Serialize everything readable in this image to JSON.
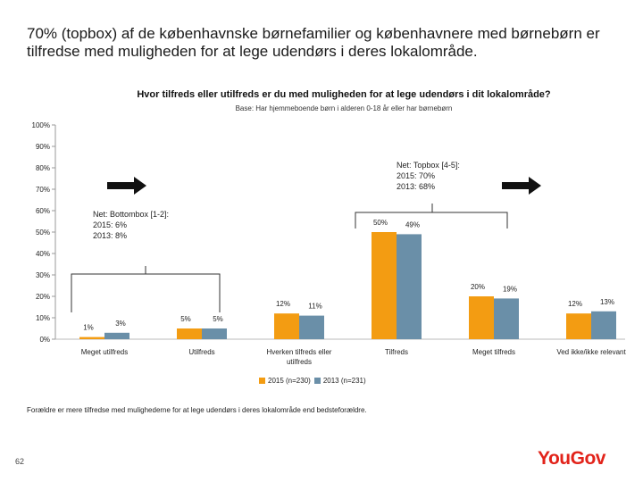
{
  "headline": "70% (topbox) af de københavnske børnefamilier og københavnere med børnebørn er tilfredse med muligheden for at lege udendørs i deres lokalområde.",
  "chart_data": {
    "type": "bar",
    "title": "Hvor tilfreds eller utilfreds er du med muligheden for at lege udendørs i dit lokalområde?",
    "subtitle": "Base: Har hjemmeboende børn i alderen 0-18 år eller har børnebørn",
    "categories": [
      "Meget utilfreds",
      "Utilfreds",
      "Hverken tilfreds eller utilfreds",
      "Tilfreds",
      "Meget tilfreds",
      "Ved ikke/ikke relevant"
    ],
    "series": [
      {
        "name": "2015 (n=230)",
        "values": [
          1,
          5,
          12,
          50,
          20,
          12
        ],
        "color": "#F39C12"
      },
      {
        "name": "2013 (n=231)",
        "values": [
          3,
          5,
          11,
          49,
          19,
          13
        ],
        "color": "#6A8FA8"
      }
    ],
    "value_labels": {
      "2015 (n=230)": [
        "1%",
        "5%",
        "12%",
        "50%",
        "20%",
        "12%"
      ],
      "2013 (n=231)": [
        "3%",
        "5%",
        "11%",
        "49%",
        "19%",
        "13%"
      ]
    },
    "ylim": [
      0,
      100
    ],
    "yticks": [
      "0%",
      "10%",
      "20%",
      "30%",
      "40%",
      "50%",
      "60%",
      "70%",
      "80%",
      "90%",
      "100%"
    ],
    "legend_position": "bottom",
    "grid": false
  },
  "annotations": {
    "bottom_box": {
      "title": "Net: Bottombox [1-2]:",
      "line1": "2015: 6%",
      "line2": "2013: 8%"
    },
    "top_box": {
      "title": "Net: Topbox [4-5]:",
      "line1": "2015: 70%",
      "line2": "2013: 68%"
    }
  },
  "footnote": "Forældre er mere tilfredse med mulighederne for at lege udendørs i deres lokalområde end bedsteforældre.",
  "page_number": "62",
  "logo_text": "YouGov",
  "colors": {
    "accent": "#F39C12",
    "secondary": "#6A8FA8",
    "brand": "#e2231a"
  }
}
